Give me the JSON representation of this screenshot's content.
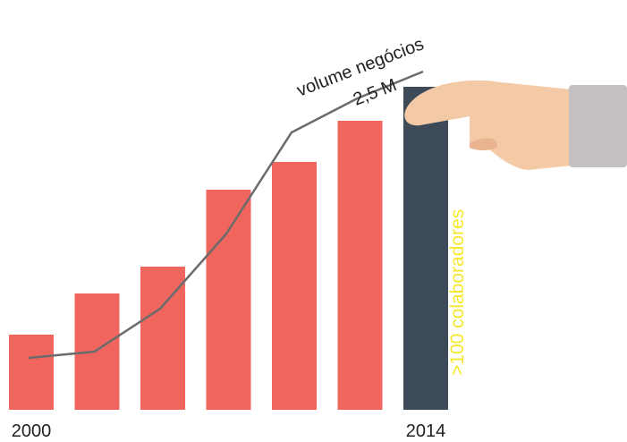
{
  "chart_data": {
    "type": "bar",
    "categories": [
      "2000",
      null,
      null,
      null,
      null,
      null,
      "2014"
    ],
    "values": [
      84,
      130,
      160,
      246,
      277,
      323,
      361
    ],
    "colors": [
      "#f0665f",
      "#f0665f",
      "#f0665f",
      "#f0665f",
      "#f0665f",
      "#f0665f",
      "#3d4a57"
    ],
    "line": {
      "values": [
        58,
        65,
        113,
        196,
        310,
        348,
        378
      ],
      "color": "#6b6b6b"
    },
    "ylim": [
      0,
      380
    ],
    "annotations": [
      "volume negócios",
      "2,5 M",
      ">100 colaboradores"
    ]
  }
}
